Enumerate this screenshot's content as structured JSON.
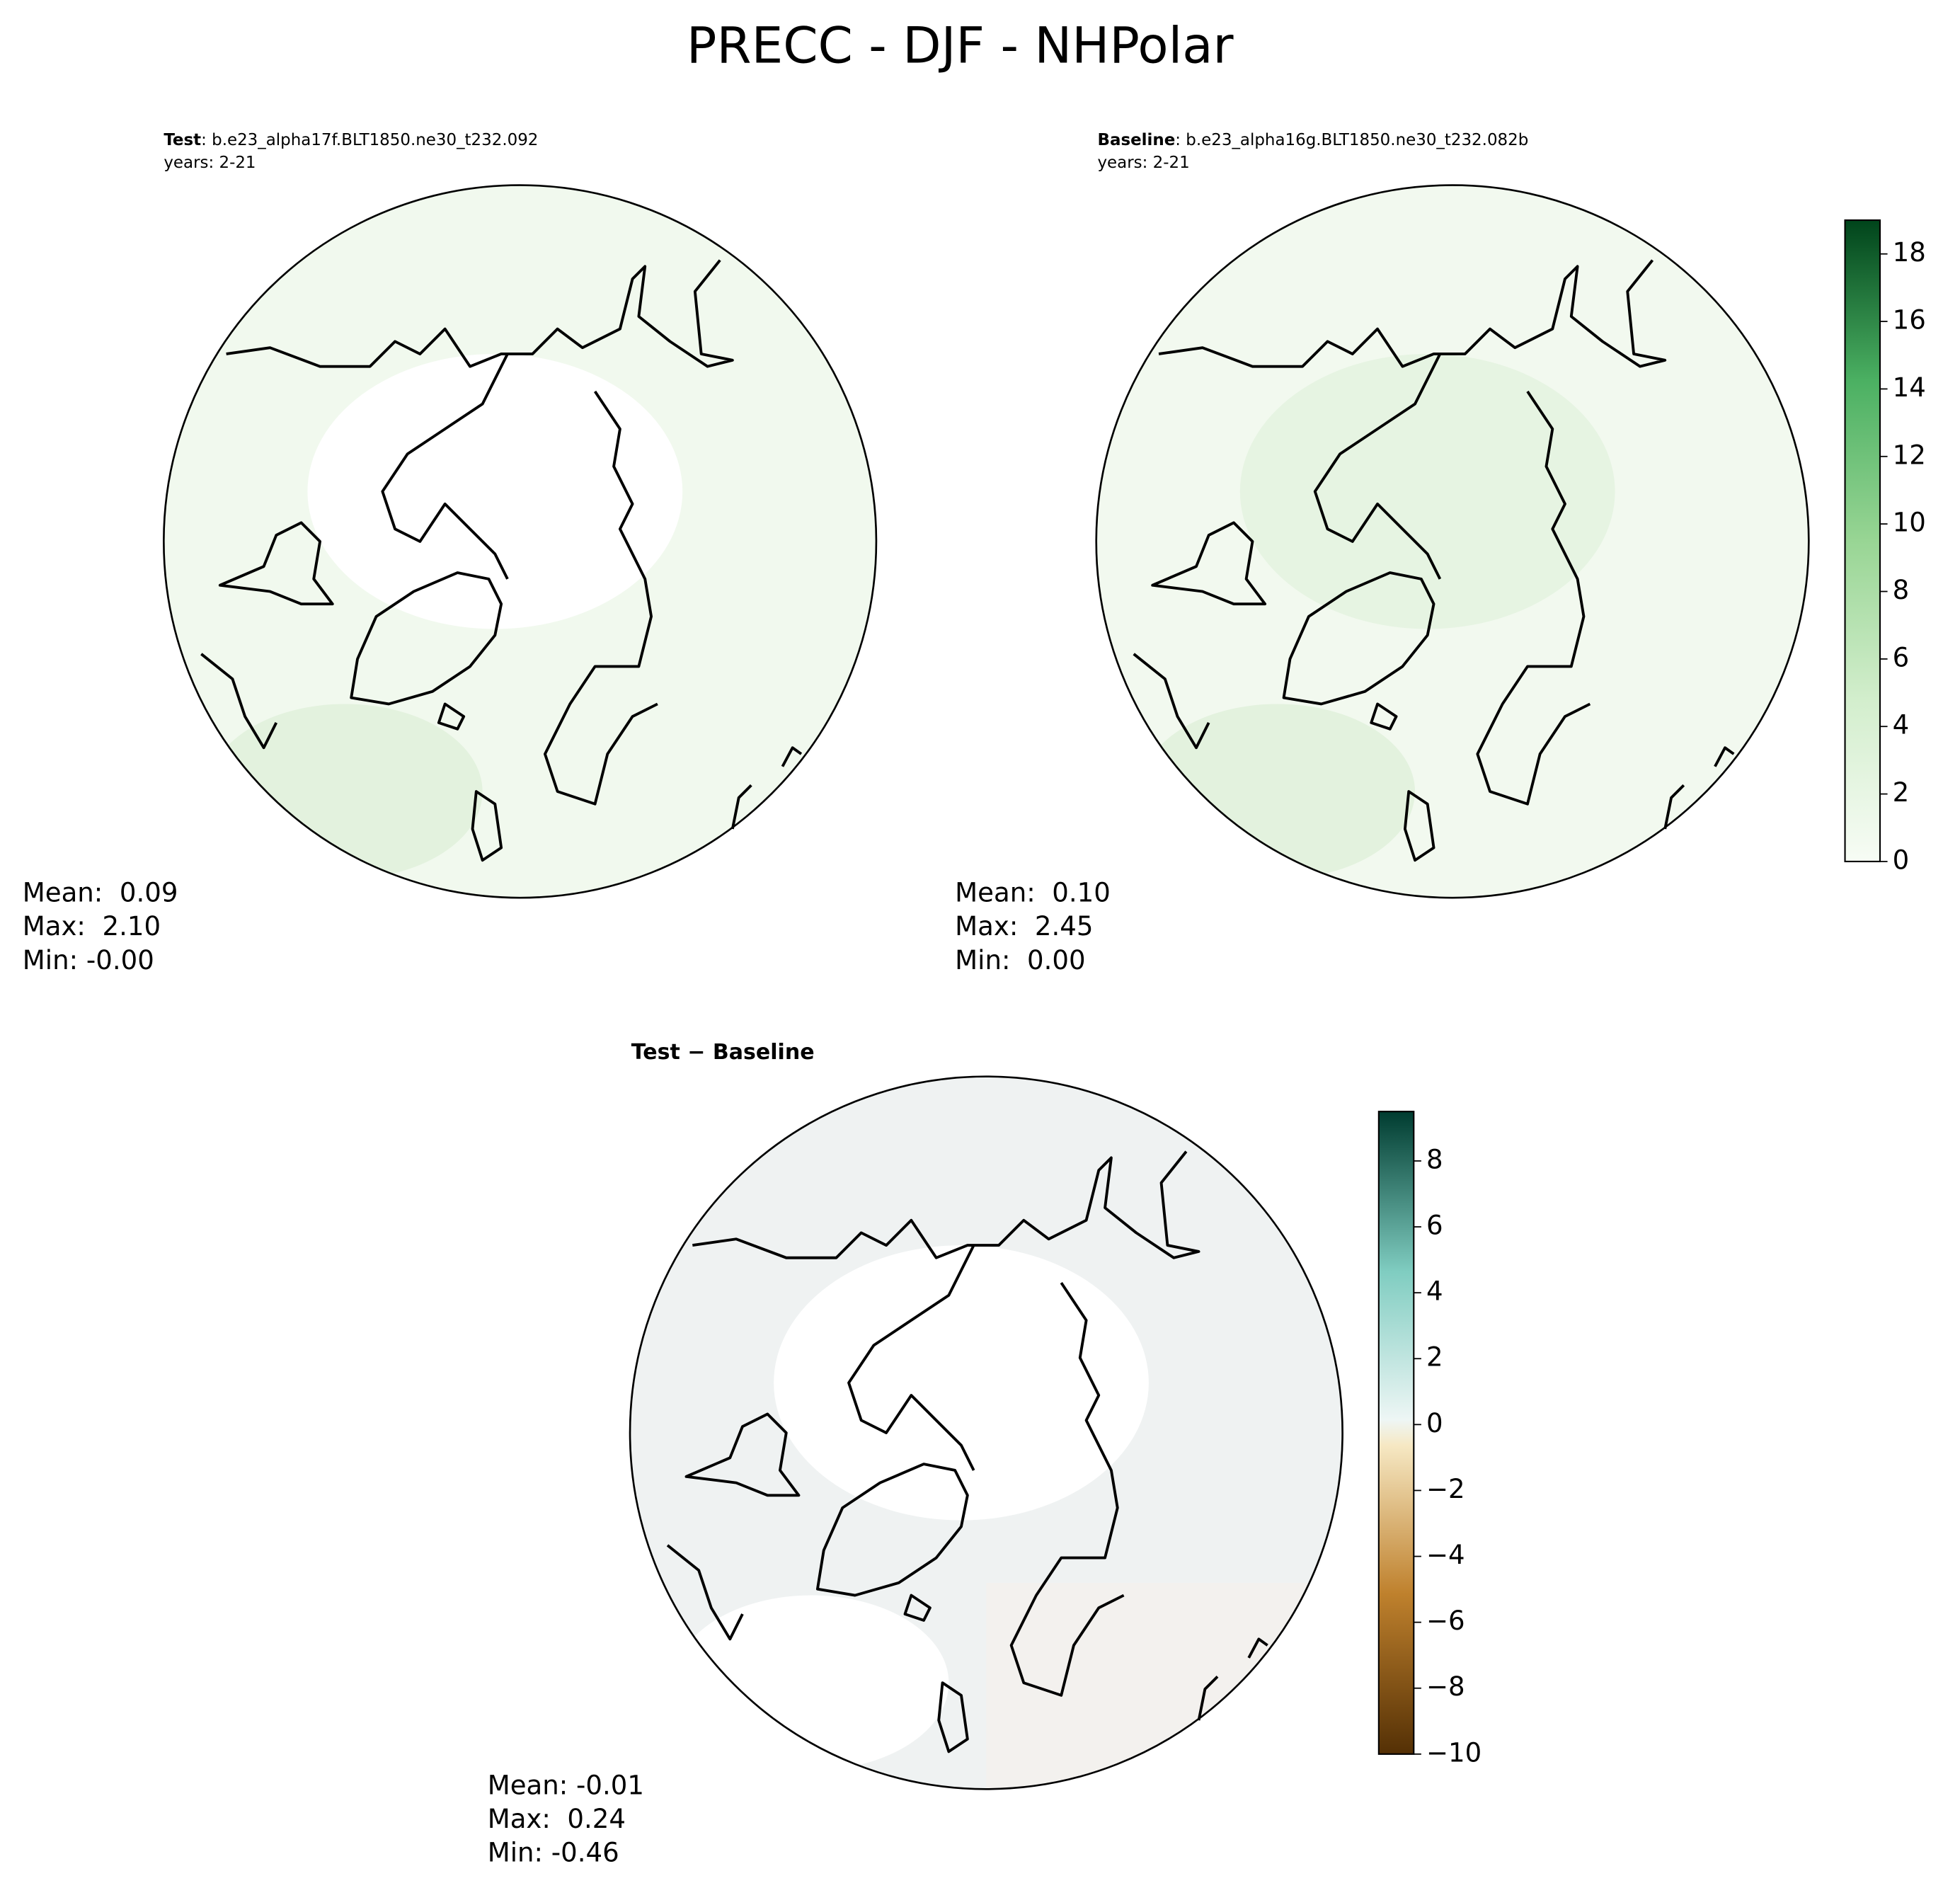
{
  "title": "PRECC - DJF - NHPolar",
  "panels": [
    {
      "label_bold": "Test",
      "label_rest": ": b.e23_alpha17f.BLT1850.ne30_t232.092",
      "years": "years: 2-21",
      "stats": [
        "Mean:  0.09",
        "Max:  2.10",
        "Min: -0.00"
      ]
    },
    {
      "label_bold": "Baseline",
      "label_rest": ": b.e23_alpha16g.BLT1850.ne30_t232.082b",
      "years": "years: 2-21",
      "stats": [
        "Mean:  0.10",
        "Max:  2.45",
        "Min:  0.00"
      ]
    },
    {
      "label_bold": "Test − Baseline",
      "stats": [
        "Mean: -0.01",
        "Max:  0.24",
        "Min: -0.46"
      ]
    }
  ],
  "colorbars": [
    {
      "lim": [
        0,
        19
      ],
      "ticks": [
        0,
        2,
        4,
        6,
        8,
        10,
        12,
        14,
        16,
        18
      ]
    },
    {
      "lim": [
        -10,
        9.5
      ],
      "ticks": [
        {
          "value": -10,
          "label": "−10"
        },
        {
          "value": -8,
          "label": "−8"
        },
        {
          "value": -6,
          "label": "−6"
        },
        {
          "value": -4,
          "label": "−4"
        },
        {
          "value": -2,
          "label": "−2"
        },
        0,
        2,
        4,
        6,
        8
      ]
    }
  ]
}
